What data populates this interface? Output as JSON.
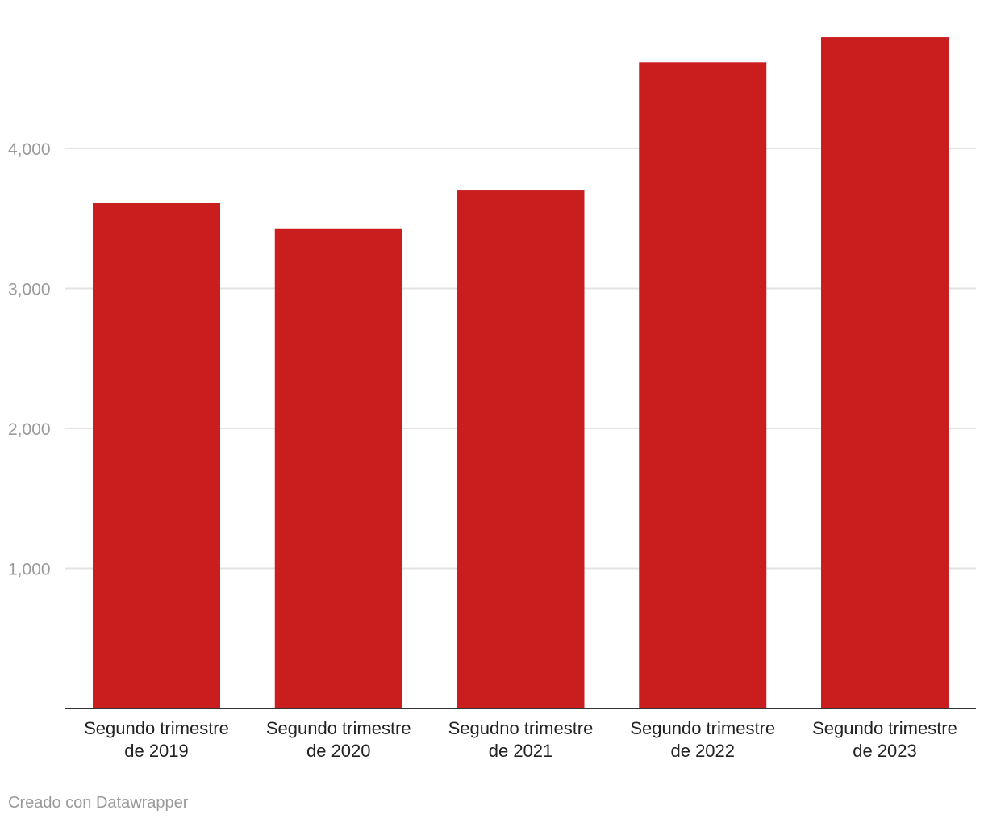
{
  "chart_data": {
    "type": "bar",
    "categories": [
      [
        "Segundo trimestre",
        "de 2019"
      ],
      [
        "Segundo trimestre",
        "de 2020"
      ],
      [
        "Segudno trimestre",
        "de 2021"
      ],
      [
        "Segundo trimestre",
        "de 2022"
      ],
      [
        "Segundo trimestre",
        "de 2023"
      ]
    ],
    "values": [
      3610,
      3425,
      3700,
      4615,
      4795
    ],
    "ylim": [
      0,
      4800
    ],
    "yticks": [
      1000,
      2000,
      3000,
      4000
    ],
    "ytick_labels": [
      "1,000",
      "2,000",
      "3,000",
      "4,000"
    ],
    "grid": true,
    "bar_color": "#c91d1e",
    "title": "",
    "xlabel": "",
    "ylabel": ""
  },
  "footer": {
    "credit": "Creado con Datawrapper"
  }
}
